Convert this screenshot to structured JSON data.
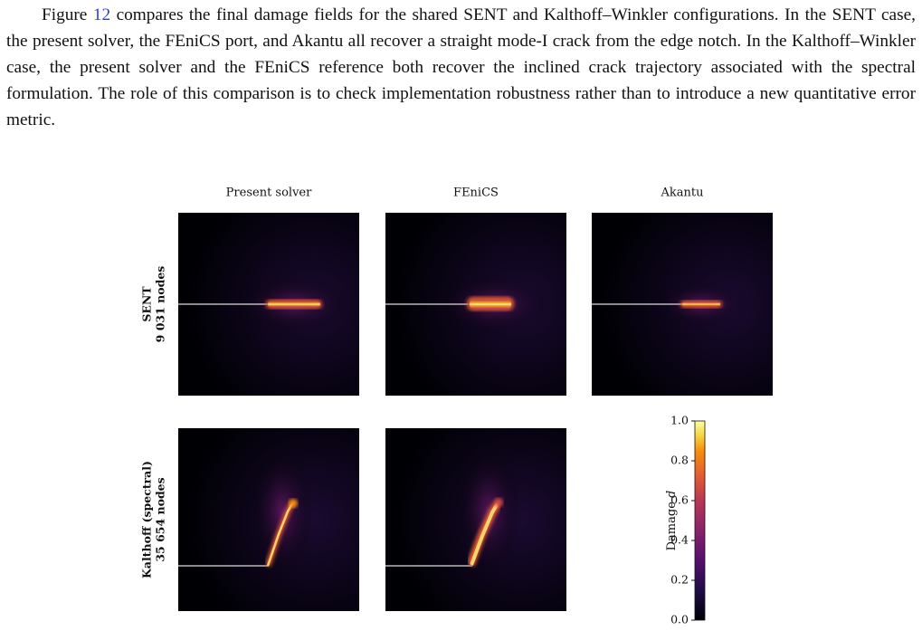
{
  "paragraph": {
    "before": "Figure ",
    "ref": "12",
    "after": " compares the final damage fields for the shared SENT and Kalthoff–Winkler configurations. In the SENT case, the present solver, the FEniCS port, and Akantu all recover a straight mode-I crack from the edge notch. In the Kalthoff–Winkler case, the present solver and the FEniCS reference both recover the inclined crack trajectory associated with the spectral formulation. The role of this comparison is to check implementation robustness rather than to introduce a new quantitative error metric."
  },
  "figure": {
    "columns": [
      "Present solver",
      "FEniCS",
      "Akantu"
    ],
    "rows": [
      {
        "name": "SENT",
        "nodes": "9 031 nodes"
      },
      {
        "name": "Kalthoff (spectral)",
        "nodes": "35 654 nodes"
      }
    ],
    "colorbar": {
      "label": "Damage",
      "symbol": "d",
      "lim": [
        0,
        1
      ],
      "ticks": [
        {
          "value": 0,
          "label": "0.0"
        },
        {
          "value": 0.2,
          "label": "0.2"
        },
        {
          "value": 0.4,
          "label": "0.4"
        },
        {
          "value": 0.6,
          "label": "0.6"
        },
        {
          "value": 0.8,
          "label": "0.8"
        },
        {
          "value": 1,
          "label": "1.0"
        }
      ]
    }
  }
}
